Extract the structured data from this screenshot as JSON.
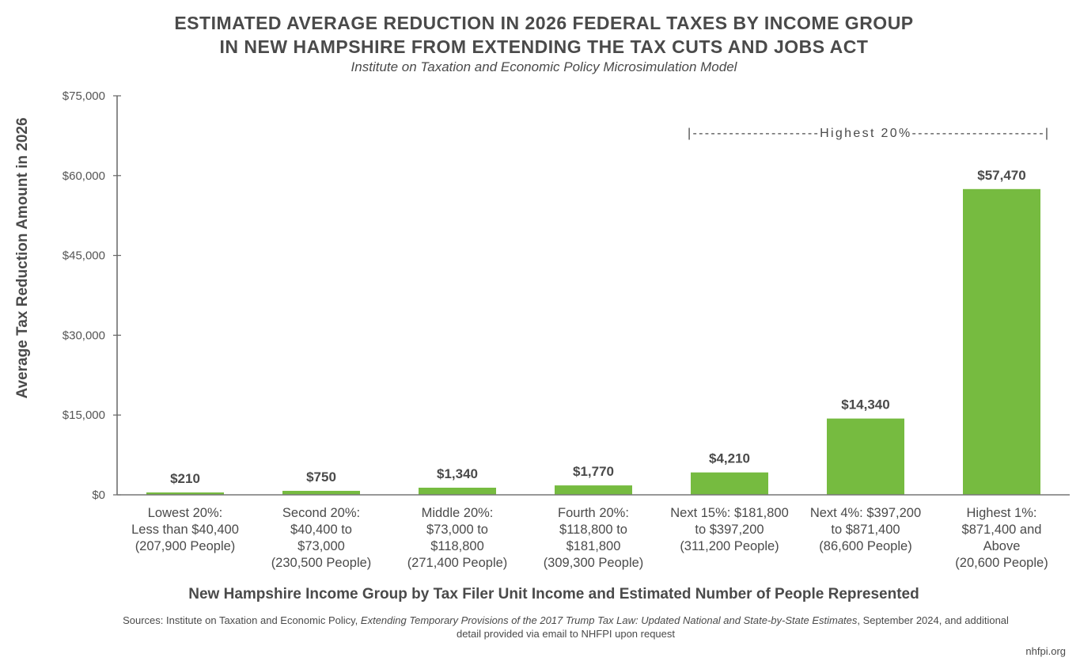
{
  "chart_data": {
    "type": "bar",
    "title_lines": [
      "ESTIMATED AVERAGE REDUCTION IN 2026 FEDERAL TAXES BY INCOME GROUP",
      "IN NEW HAMPSHIRE FROM EXTENDING THE TAX CUTS AND JOBS ACT"
    ],
    "subtitle": "Institute on Taxation and Economic Policy Microsimulation Model",
    "ylabel": "Average Tax Reduction Amount in 2026",
    "xlabel": "New Hampshire Income Group by Tax Filer Unit Income and Estimated Number of People Represented",
    "ylim": [
      0,
      75000
    ],
    "yticks": [
      0,
      15000,
      30000,
      45000,
      60000,
      75000
    ],
    "ytick_labels": [
      "$0",
      "$15,000",
      "$30,000",
      "$45,000",
      "$60,000",
      "$75,000"
    ],
    "grid": false,
    "bar_color": "#76bb40",
    "categories": [
      [
        "Lowest 20%:",
        "Less than $40,400",
        "(207,900 People)"
      ],
      [
        "Second 20%:",
        "$40,400 to",
        "$73,000",
        "(230,500 People)"
      ],
      [
        "Middle 20%:",
        "$73,000 to",
        "$118,800",
        "(271,400 People)"
      ],
      [
        "Fourth 20%:",
        "$118,800 to",
        "$181,800",
        "(309,300 People)"
      ],
      [
        "Next 15%: $181,800",
        "to $397,200",
        "(311,200 People)"
      ],
      [
        "Next 4%: $397,200",
        "to $871,400",
        "(86,600 People)"
      ],
      [
        "Highest 1%:",
        "$871,400 and",
        "Above",
        "(20,600 People)"
      ]
    ],
    "values": [
      210,
      750,
      1340,
      1770,
      4210,
      14340,
      57470
    ],
    "value_labels": [
      "$210",
      "$750",
      "$1,340",
      "$1,770",
      "$4,210",
      "$14,340",
      "$57,470"
    ],
    "annotation": "|---------------------Highest 20%----------------------|"
  },
  "sources": {
    "prefix": "Sources: Institute on Taxation and Economic Policy, ",
    "title_italic": "Extending Temporary Provisions of the 2017 Trump Tax Law: Updated National and State-by-State Estimates",
    "suffix": ", September 2024, and additional detail provided via email to NHFPI upon request"
  },
  "credit": "nhfpi.org"
}
